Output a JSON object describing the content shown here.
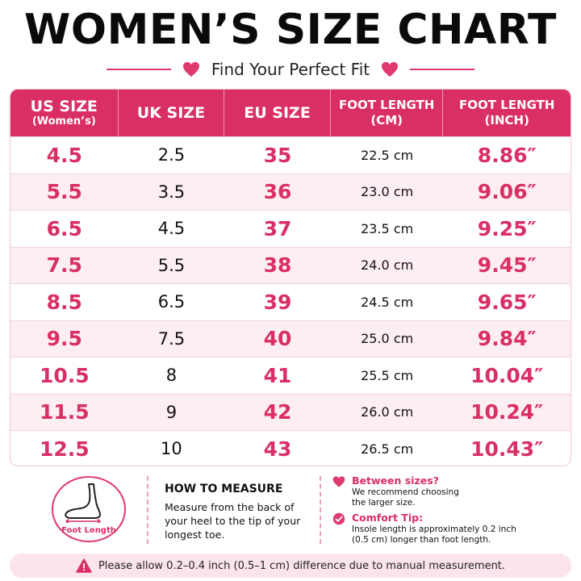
{
  "title": "WOMEN’S SIZE CHART",
  "subtitle": "Find Your Perfect Fit",
  "headers": {
    "us_main": "US SIZE",
    "us_sub": "(Women’s)",
    "uk": "UK SIZE",
    "eu": "EU SIZE",
    "cm_main": "FOOT LENGTH",
    "cm_sub": "(CM)",
    "in_main": "FOOT LENGTH",
    "in_sub": "(INCH)"
  },
  "rows": [
    {
      "us": "4.5",
      "uk": "2.5",
      "eu": "35",
      "cm": "22.5 cm",
      "inch": "8.86″"
    },
    {
      "us": "5.5",
      "uk": "3.5",
      "eu": "36",
      "cm": "23.0 cm",
      "inch": "9.06″"
    },
    {
      "us": "6.5",
      "uk": "4.5",
      "eu": "37",
      "cm": "23.5 cm",
      "inch": "9.25″"
    },
    {
      "us": "7.5",
      "uk": "5.5",
      "eu": "38",
      "cm": "24.0 cm",
      "inch": "9.45″"
    },
    {
      "us": "8.5",
      "uk": "6.5",
      "eu": "39",
      "cm": "24.5 cm",
      "inch": "9.65″"
    },
    {
      "us": "9.5",
      "uk": "7.5",
      "eu": "40",
      "cm": "25.0 cm",
      "inch": "9.84″"
    },
    {
      "us": "10.5",
      "uk": "8",
      "eu": "41",
      "cm": "25.5 cm",
      "inch": "10.04″"
    },
    {
      "us": "11.5",
      "uk": "9",
      "eu": "42",
      "cm": "26.0 cm",
      "inch": "10.24″"
    },
    {
      "us": "12.5",
      "uk": "10",
      "eu": "43",
      "cm": "26.5 cm",
      "inch": "10.43″"
    }
  ],
  "foot_icon_label": "Foot Length",
  "how_to": {
    "title": "HOW TO MEASURE",
    "text": "Measure from the back of your heel to the tip of your longest toe."
  },
  "tips": {
    "between_title": "Between sizes?",
    "between_text": "We recommend choosing the larger size.",
    "comfort_title": "Comfort Tip:",
    "comfort_text": "Insole length is approximately 0.2 inch (0.5 cm) longer than foot length."
  },
  "notice": "Please allow 0.2–0.4 inch (0.5–1 cm) difference due to manual measurement.",
  "colors": {
    "accent": "#d92f65",
    "row_alt": "#fdeef2",
    "notice_bg": "#fbe4ec"
  }
}
